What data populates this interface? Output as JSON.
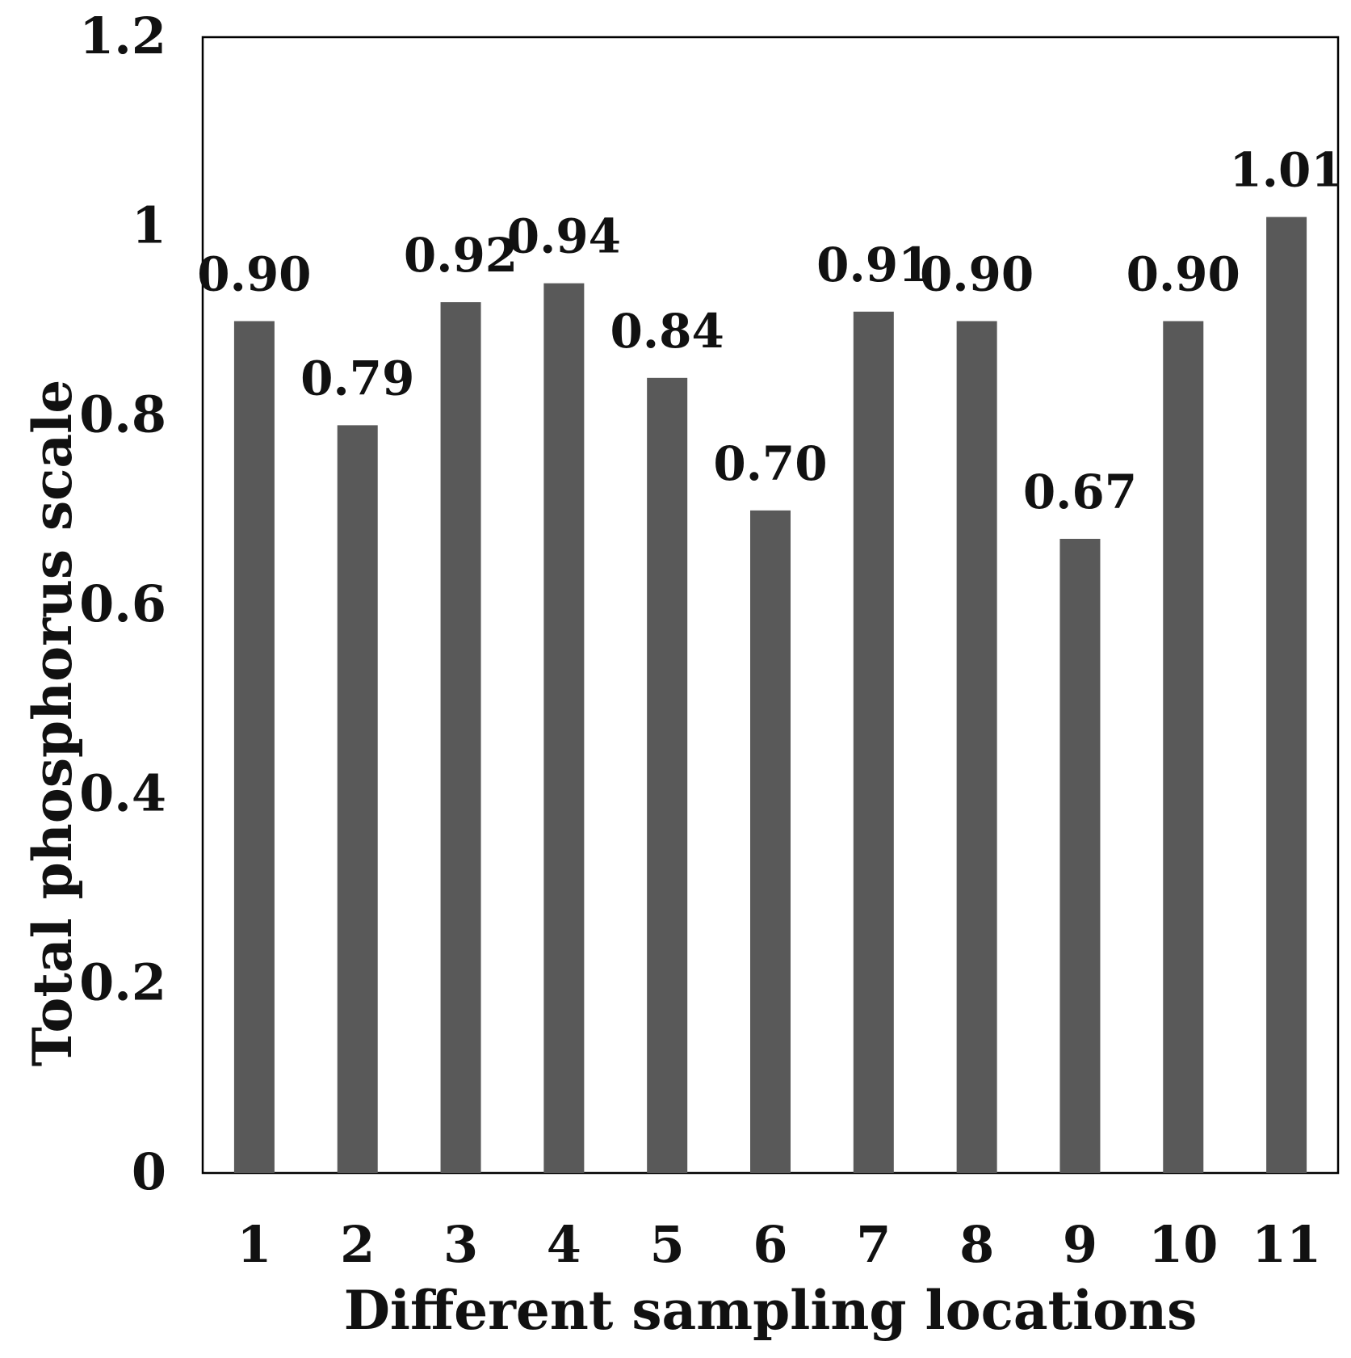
{
  "chart_data": {
    "type": "bar",
    "title": "",
    "xlabel": "Different sampling locations",
    "ylabel": "Total phosphorus scale",
    "categories": [
      "1",
      "2",
      "3",
      "4",
      "5",
      "6",
      "7",
      "8",
      "9",
      "10",
      "11"
    ],
    "values": [
      0.9,
      0.79,
      0.92,
      0.94,
      0.84,
      0.7,
      0.91,
      0.9,
      0.67,
      0.9,
      1.01
    ],
    "data_labels": [
      "0.90",
      "0.79",
      "0.92",
      "0.94",
      "0.84",
      "0.70",
      "0.91",
      "0.90",
      "0.67",
      "0.90",
      "1.01"
    ],
    "ylim": [
      0,
      1.2
    ],
    "yticks": [
      0,
      0.2,
      0.4,
      0.6,
      0.8,
      1,
      1.2
    ],
    "ytick_labels": [
      "0",
      "0.2",
      "0.4",
      "0.6",
      "0.8",
      "1",
      "1.2"
    ],
    "grid": false,
    "legend": "none",
    "bar_color": "#595959"
  }
}
